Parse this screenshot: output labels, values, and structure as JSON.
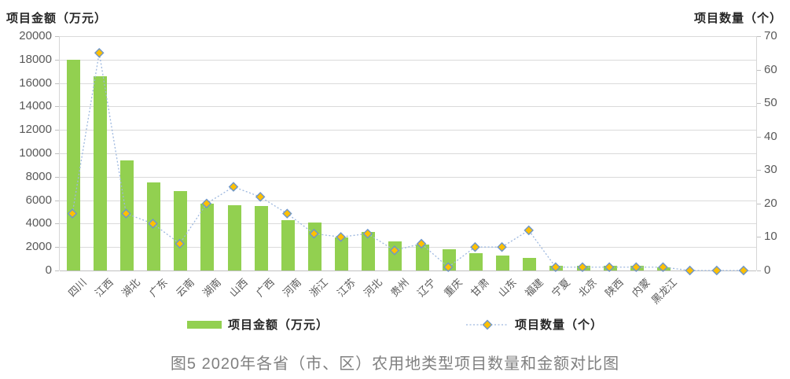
{
  "figure": {
    "left_axis_title": "项目金额（万元）",
    "right_axis_title": "项目数量（个）",
    "caption": "图5  2020年各省（市、区）农用地类型项目数量和金额对比图",
    "legend": {
      "bar_label": "项目金额（万元）",
      "line_label": "项目数量（个）"
    },
    "colors": {
      "bar": "#92D050",
      "marker_fill": "#FFC000",
      "marker_stroke": "#6E96C8",
      "line": "#9DB8DF",
      "grid": "#dadada",
      "tick_text": "#595959",
      "caption_text": "#808080"
    }
  },
  "chart_data": {
    "type": "bar",
    "subtype": "bar+line dual axis",
    "title": "图5  2020年各省（市、区）农用地类型项目数量和金额对比图",
    "categories": [
      "四川",
      "江西",
      "湖北",
      "广东",
      "云南",
      "湖南",
      "山西",
      "广西",
      "河南",
      "浙江",
      "江苏",
      "河北",
      "贵州",
      "辽宁",
      "重庆",
      "甘肃",
      "山东",
      "福建",
      "宁夏",
      "北京",
      "陕西",
      "内蒙",
      "黑龙江",
      "",
      "",
      ""
    ],
    "series": [
      {
        "name": "项目金额（万元）",
        "type": "bar",
        "axis": "left",
        "values": [
          18000,
          16600,
          9400,
          7500,
          6800,
          5700,
          5600,
          5500,
          4300,
          4100,
          2800,
          3300,
          2500,
          2200,
          1800,
          1500,
          1300,
          1100,
          400,
          400,
          400,
          400,
          300,
          0,
          0,
          0
        ]
      },
      {
        "name": "项目数量（个）",
        "type": "line",
        "axis": "right",
        "values": [
          17,
          65,
          17,
          14,
          8,
          20,
          25,
          22,
          17,
          11,
          10,
          11,
          6,
          8,
          1,
          7,
          7,
          12,
          1,
          1,
          1,
          1,
          1,
          0,
          0,
          0
        ]
      }
    ],
    "left_axis": {
      "label": "项目金额（万元）",
      "min": 0,
      "max": 20000,
      "step": 2000
    },
    "right_axis": {
      "label": "项目数量（个）",
      "min": 0,
      "max": 70,
      "step": 10
    },
    "grid": true,
    "legend_position": "bottom"
  }
}
